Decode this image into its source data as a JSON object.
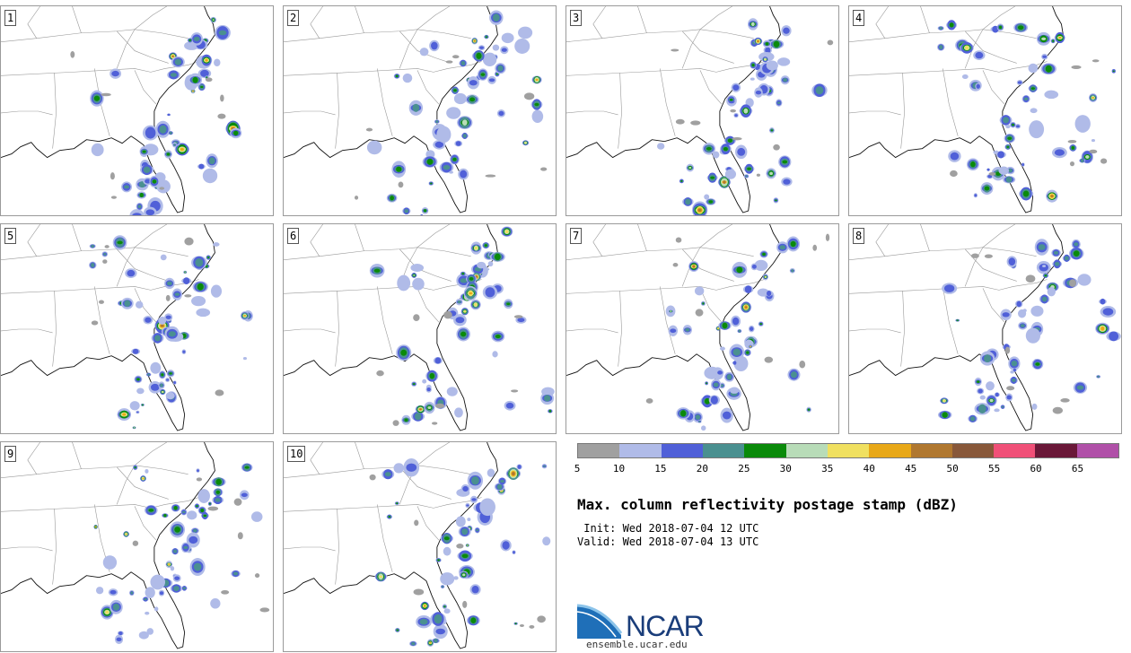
{
  "panels": [
    {
      "label": "1"
    },
    {
      "label": "2"
    },
    {
      "label": "3"
    },
    {
      "label": "4"
    },
    {
      "label": "5"
    },
    {
      "label": "6"
    },
    {
      "label": "7"
    },
    {
      "label": "8"
    },
    {
      "label": "9"
    },
    {
      "label": "10"
    }
  ],
  "colorbar": {
    "colors": [
      "#a0a0a0",
      "#b0bbe8",
      "#5060d8",
      "#4a9090",
      "#0a8a0a",
      "#b8dcb8",
      "#f0e060",
      "#e8a818",
      "#b07830",
      "#88583a",
      "#f05078",
      "#6a1838",
      "#b050a8"
    ],
    "ticks": [
      "5",
      "10",
      "15",
      "20",
      "25",
      "30",
      "35",
      "40",
      "45",
      "50",
      "55",
      "60",
      "65"
    ]
  },
  "title": "Max. column reflectivity postage stamp (dBZ)",
  "init": " Init: Wed 2018-07-04 12 UTC",
  "valid": "Valid: Wed 2018-07-04 13 UTC",
  "logo": {
    "text": "NCAR",
    "url_text": "ensemble.ucar.edu"
  }
}
